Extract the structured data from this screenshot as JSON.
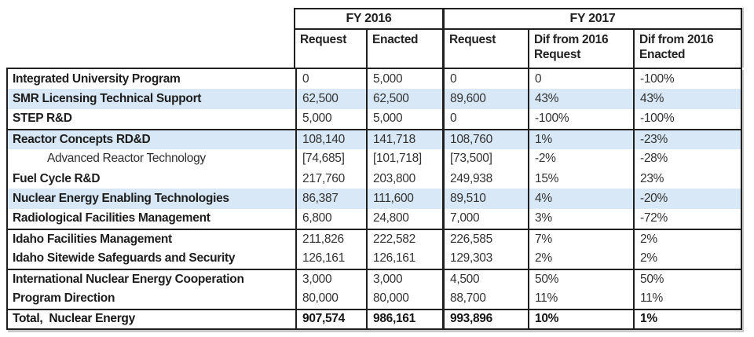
{
  "chart_data": {
    "type": "table",
    "column_groups": [
      {
        "label": "FY 2016",
        "span": 2
      },
      {
        "label": "FY 2017",
        "span": 3
      }
    ],
    "sub_columns": [
      "Request",
      "Enacted",
      "Request",
      "Dif from 2016 Request",
      "Dif from 2016 Enacted"
    ],
    "rows": [
      [
        "Integrated University Program",
        "0",
        "5,000",
        "0",
        "0",
        "-100%"
      ],
      [
        "SMR Licensing Technical Support",
        "62,500",
        "62,500",
        "89,600",
        "43%",
        "43%"
      ],
      [
        "STEP R&D",
        "5,000",
        "5,000",
        "0",
        "-100%",
        "-100%"
      ],
      [
        "Reactor Concepts RD&D",
        "108,140",
        "141,718",
        "108,760",
        "1%",
        "-23%"
      ],
      [
        "Advanced Reactor Technology",
        "[74,685]",
        "[101,718]",
        "[73,500]",
        "-2%",
        "-28%"
      ],
      [
        "Fuel Cycle R&D",
        "217,760",
        "203,800",
        "249,938",
        "15%",
        "23%"
      ],
      [
        "Nuclear Energy Enabling Technologies",
        "86,387",
        "111,600",
        "89,510",
        "4%",
        "-20%"
      ],
      [
        "Radiological Facilities Management",
        "6,800",
        "24,800",
        "7,000",
        "3%",
        "-72%"
      ],
      [
        "Idaho Facilities Management",
        "211,826",
        "222,582",
        "226,585",
        "7%",
        "2%"
      ],
      [
        "Idaho Sitewide Safeguards and Security",
        "126,161",
        "126,161",
        "129,303",
        "2%",
        "2%"
      ],
      [
        "International Nuclear Energy Cooperation",
        "3,000",
        "3,000",
        "4,500",
        "50%",
        "50%"
      ],
      [
        "Program Direction",
        "80,000",
        "80,000",
        "88,700",
        "11%",
        "11%"
      ],
      [
        "Total,  Nuclear Energy",
        "907,574",
        "986,161",
        "993,896",
        "10%",
        "1%"
      ]
    ],
    "highlighted_row_indices": [
      1,
      3,
      6
    ],
    "indented_row_indices": [
      4
    ],
    "total_row_index": 12,
    "group_separator_row_indices": [
      3,
      8,
      10,
      12
    ],
    "layout": {
      "grid": "off",
      "legend": "none"
    },
    "colors": {
      "row_highlight": "#d8e8f6",
      "border": "#1f1f1f",
      "text": "#222222"
    }
  }
}
